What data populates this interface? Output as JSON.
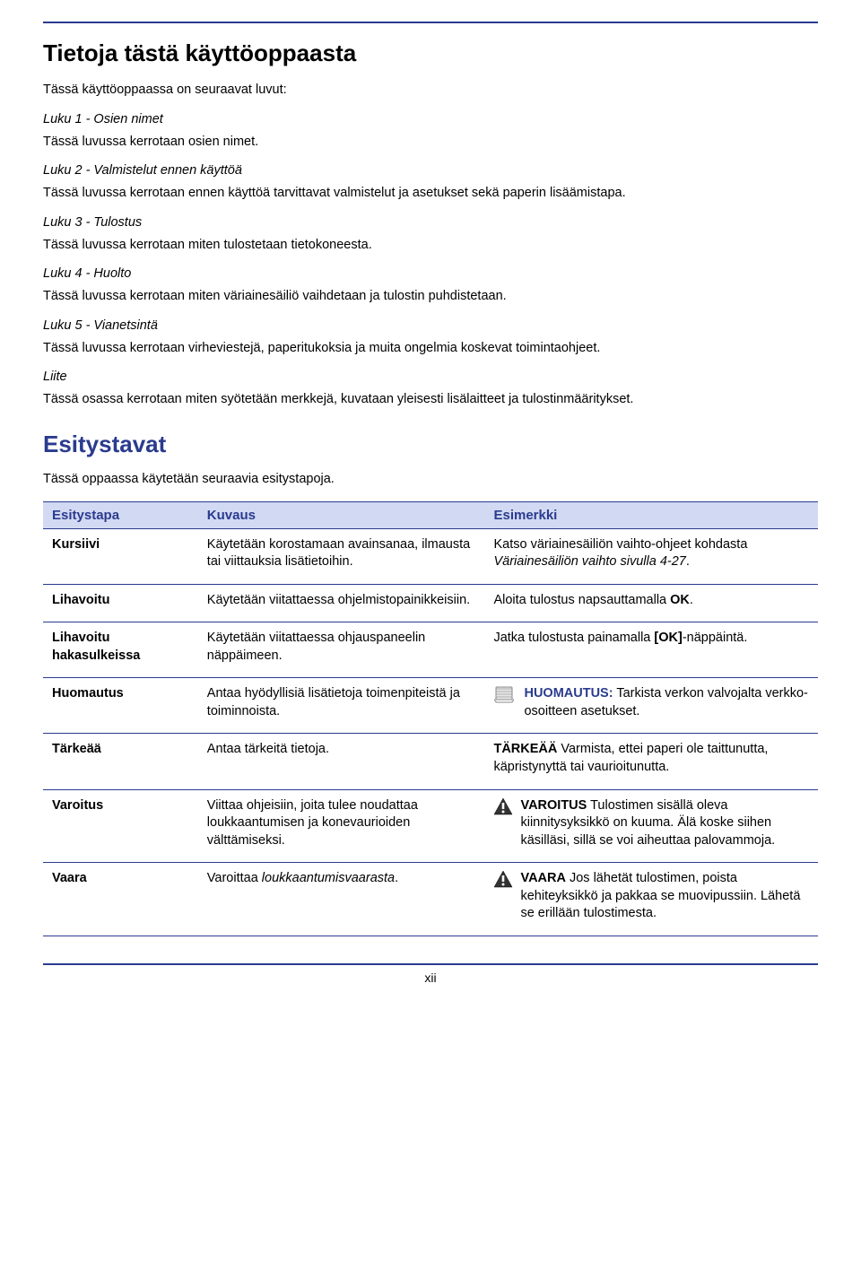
{
  "main_title": "Tietoja tästä käyttöoppaasta",
  "intro": "Tässä käyttöoppaassa on seuraavat luvut:",
  "chapters": [
    {
      "label": "Luku 1 - Osien nimet",
      "desc": "Tässä luvussa kerrotaan osien nimet."
    },
    {
      "label": "Luku 2 - Valmistelut ennen käyttöä",
      "desc": "Tässä luvussa kerrotaan ennen käyttöä tarvittavat valmistelut ja asetukset sekä paperin lisäämistapa."
    },
    {
      "label": "Luku 3 - Tulostus",
      "desc": "Tässä luvussa kerrotaan miten tulostetaan tietokoneesta."
    },
    {
      "label": "Luku 4 - Huolto",
      "desc": "Tässä luvussa kerrotaan miten väriainesäiliö vaihdetaan ja tulostin puhdistetaan."
    },
    {
      "label": "Luku 5 - Vianetsintä",
      "desc": "Tässä luvussa kerrotaan virheviestejä, paperitukoksia ja muita ongelmia koskevat toimintaohjeet."
    },
    {
      "label": "Liite",
      "desc": "Tässä osassa kerrotaan miten syötetään merkkejä, kuvataan yleisesti lisälaitteet ja tulostinmääritykset."
    }
  ],
  "heading2": "Esitystavat",
  "heading2_sub": "Tässä oppaassa käytetään seuraavia esitystapoja.",
  "table": {
    "headers": [
      "Esitystapa",
      "Kuvaus",
      "Esimerkki"
    ],
    "rows": [
      {
        "c1": "Kursiivi",
        "c2": "Käytetään korostamaan avainsanaa, ilmausta tai viittauksia lisätietoihin.",
        "c3_pre": "Katso väriainesäiliön vaihto-ohjeet kohdasta ",
        "c3_ital": "Väriainesäiliön vaihto sivulla 4-27",
        "c3_post": "."
      },
      {
        "c1": "Lihavoitu",
        "c2": "Käytetään viitattaessa ohjelmistopainikkeisiin.",
        "c3_pre": "Aloita tulostus napsauttamalla ",
        "c3_bold": "OK",
        "c3_post": "."
      },
      {
        "c1": "Lihavoitu hakasulkeissa",
        "c2": "Käytetään viitattaessa ohjauspaneelin näppäimeen.",
        "c3_pre": "Jatka tulostusta painamalla ",
        "c3_bold": "[OK]",
        "c3_post": "-näppäintä."
      },
      {
        "c1": "Huomautus",
        "c2": "Antaa hyödyllisiä lisätietoja toimenpiteistä ja toiminnoista.",
        "c3_label": "HUOMAUTUS:",
        "c3_text": " Tarkista verkon valvojalta verkko-osoitteen asetukset.",
        "icon": "note"
      },
      {
        "c1": "Tärkeää",
        "c2": "Antaa tärkeitä tietoja.",
        "c3_bold": "TÄRKEÄÄ",
        "c3_text": " Varmista, ettei paperi ole taittunutta, käpristynyttä tai vaurioitunutta."
      },
      {
        "c1": "Varoitus",
        "c2": "Viittaa ohjeisiin, joita tulee noudattaa loukkaantumisen ja konevaurioiden välttämiseksi.",
        "c3_bold": "VAROITUS",
        "c3_text": " Tulostimen sisällä oleva kiinnitysyksikkö on kuuma. Älä koske siihen käsilläsi, sillä se voi aiheuttaa palovammoja.",
        "icon": "warn"
      },
      {
        "c1": "Vaara",
        "c2_pre": "Varoittaa ",
        "c2_ital": "loukkaantumisvaarasta",
        "c2_post": ".",
        "c3_bold": "VAARA",
        "c3_text": " Jos lähetät tulostimen, poista kehiteyksikkö ja pakkaa se muovipussiin. Lähetä se erillään tulostimesta.",
        "icon": "warn"
      }
    ]
  },
  "page_num": "xii",
  "colors": {
    "accent": "#2a3b8f",
    "header_bg": "#d2d9f2"
  }
}
